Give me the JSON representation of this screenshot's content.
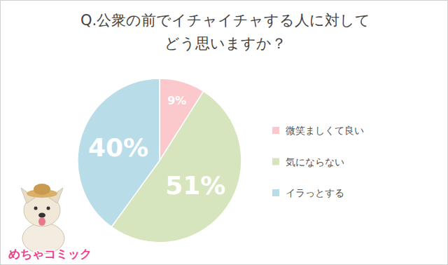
{
  "chart_data": {
    "type": "pie",
    "title": "Q.公衆の前でイチャイチャする人に対して\nどう思いますか？",
    "categories": [
      "微笑ましくて良い",
      "気にならない",
      "イラっとする"
    ],
    "values": [
      9,
      51,
      40
    ],
    "value_labels": [
      "9%",
      "51%",
      "40%"
    ],
    "colors": [
      "#fbc9cc",
      "#d6e5bd",
      "#b9dce9"
    ],
    "data_labels": true,
    "legend": "right",
    "annotations": [
      "めちゃコミック"
    ]
  }
}
